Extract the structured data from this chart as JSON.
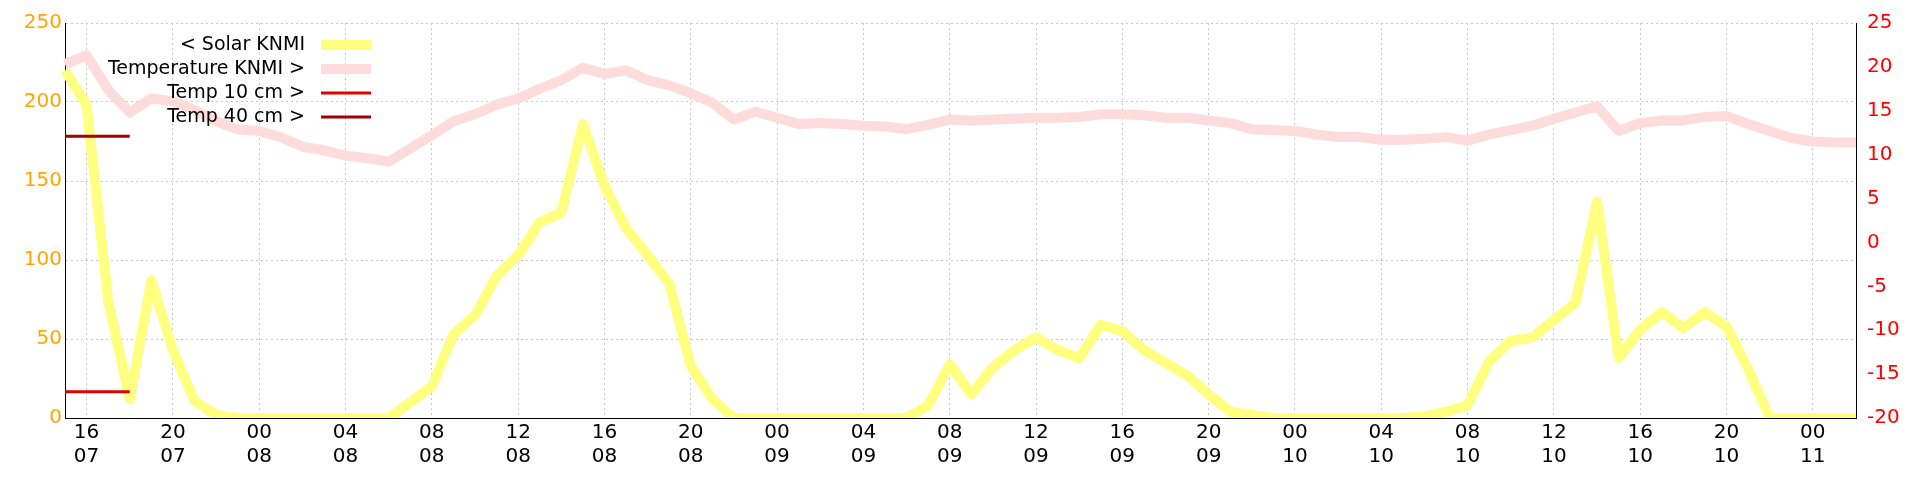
{
  "chart_data": {
    "type": "line",
    "categories": [
      null,
      "16\n07",
      null,
      null,
      null,
      "20\n07",
      null,
      null,
      null,
      "00\n08",
      null,
      null,
      null,
      "04\n08",
      null,
      null,
      null,
      "08\n08",
      null,
      null,
      null,
      "12\n08",
      null,
      null,
      null,
      "16\n08",
      null,
      null,
      null,
      "20\n08",
      null,
      null,
      null,
      "00\n09",
      null,
      null,
      null,
      "04\n09",
      null,
      null,
      null,
      "08\n09",
      null,
      null,
      null,
      "12\n09",
      null,
      null,
      null,
      "16\n09",
      null,
      null,
      null,
      "20\n09",
      null,
      null,
      null,
      "00\n10",
      null,
      null,
      null,
      "04\n10",
      null,
      null,
      null,
      "08\n10",
      null,
      null,
      null,
      "12\n10",
      null,
      null,
      null,
      "16\n10",
      null,
      null,
      null,
      "20\n10",
      null,
      null,
      null,
      "00\n11",
      null,
      null
    ],
    "series": [
      {
        "name": "< Solar KNMI",
        "color": "#ffff80",
        "axis": "y",
        "values": [
          220,
          198,
          74,
          12,
          87,
          43,
          11,
          2,
          0,
          0,
          0,
          0,
          0,
          0,
          0,
          0,
          10,
          20,
          53,
          65,
          90,
          103,
          124,
          130,
          186,
          147,
          120,
          103,
          85,
          33,
          12,
          0,
          0,
          0,
          0,
          0,
          0,
          0,
          0,
          0,
          8,
          34,
          15,
          32,
          43,
          51,
          43,
          38,
          59,
          55,
          43,
          35,
          27,
          15,
          4,
          2,
          0,
          0,
          0,
          0,
          0,
          0,
          0,
          1,
          4,
          8,
          36,
          49,
          51,
          62,
          73,
          137,
          38,
          56,
          67,
          57,
          67,
          58,
          31,
          0,
          0,
          0,
          0,
          0
        ]
      },
      {
        "name": "Temperature KNMI >",
        "color": "#ffdcdc",
        "axis": "y2",
        "values": [
          20.3,
          21.3,
          17.4,
          14.8,
          16.4,
          16.1,
          15.1,
          13.8,
          12.9,
          12.7,
          12.0,
          10.9,
          10.5,
          9.9,
          9.6,
          9.2,
          10.7,
          12.2,
          13.8,
          14.6,
          15.7,
          16.4,
          17.5,
          18.5,
          19.9,
          19.2,
          19.6,
          18.5,
          17.9,
          17.0,
          15.9,
          14.0,
          14.9,
          14.2,
          13.5,
          13.6,
          13.5,
          13.3,
          13.2,
          12.9,
          13.4,
          14.0,
          13.9,
          14.0,
          14.1,
          14.2,
          14.2,
          14.3,
          14.6,
          14.6,
          14.5,
          14.2,
          14.2,
          13.9,
          13.6,
          12.9,
          12.8,
          12.7,
          12.3,
          12.0,
          12.0,
          11.7,
          11.7,
          11.8,
          12.0,
          11.6,
          12.3,
          12.8,
          13.3,
          14.1,
          14.8,
          15.5,
          12.7,
          13.6,
          13.9,
          13.9,
          14.3,
          14.4,
          13.5,
          12.7,
          11.9,
          11.5,
          11.4,
          11.4
        ]
      },
      {
        "name": "Temp 10 cm >",
        "color": "#e00000",
        "axis": "y2",
        "values": [
          -17,
          -17,
          -17,
          -17,
          null,
          null,
          null,
          null,
          null,
          null,
          null,
          null,
          null,
          null,
          null,
          null,
          null,
          null,
          null,
          null,
          null,
          null,
          null,
          null,
          null,
          null,
          null,
          null,
          null,
          null,
          null,
          null,
          null,
          null,
          null,
          null,
          null,
          null,
          null,
          null,
          null,
          null,
          null,
          null,
          null,
          null,
          null,
          null,
          null,
          null,
          null,
          null,
          null,
          null,
          null,
          null,
          null,
          null,
          null,
          null,
          null,
          null,
          null,
          null,
          null,
          null,
          null,
          null,
          null,
          null,
          null,
          null,
          null,
          null,
          null,
          null,
          null,
          null,
          null,
          null,
          null,
          null,
          null,
          null
        ]
      },
      {
        "name": "Temp 40 cm >",
        "color": "#a00000",
        "axis": "y2",
        "values": [
          12.1,
          12.1,
          12.1,
          12.1,
          null,
          null,
          null,
          null,
          null,
          null,
          null,
          null,
          null,
          null,
          null,
          null,
          null,
          null,
          null,
          null,
          null,
          null,
          null,
          null,
          null,
          null,
          null,
          null,
          null,
          null,
          null,
          null,
          null,
          null,
          null,
          null,
          null,
          null,
          null,
          null,
          null,
          null,
          null,
          null,
          null,
          null,
          null,
          null,
          null,
          null,
          null,
          null,
          null,
          null,
          null,
          null,
          null,
          null,
          null,
          null,
          null,
          null,
          null,
          null,
          null,
          null,
          null,
          null,
          null,
          null,
          null,
          null,
          null,
          null,
          null,
          null,
          null,
          null,
          null,
          null,
          null,
          null,
          null,
          null
        ]
      }
    ],
    "ylim": [
      0,
      250
    ],
    "yticks": [
      0,
      50,
      100,
      150,
      200,
      250
    ],
    "y2lim": [
      -20,
      25
    ],
    "y2ticks": [
      -20,
      -15,
      -10,
      -5,
      0,
      5,
      10,
      15,
      20,
      25
    ],
    "grid": true,
    "legend": "top left",
    "marker": "none",
    "line_style": "solid"
  }
}
